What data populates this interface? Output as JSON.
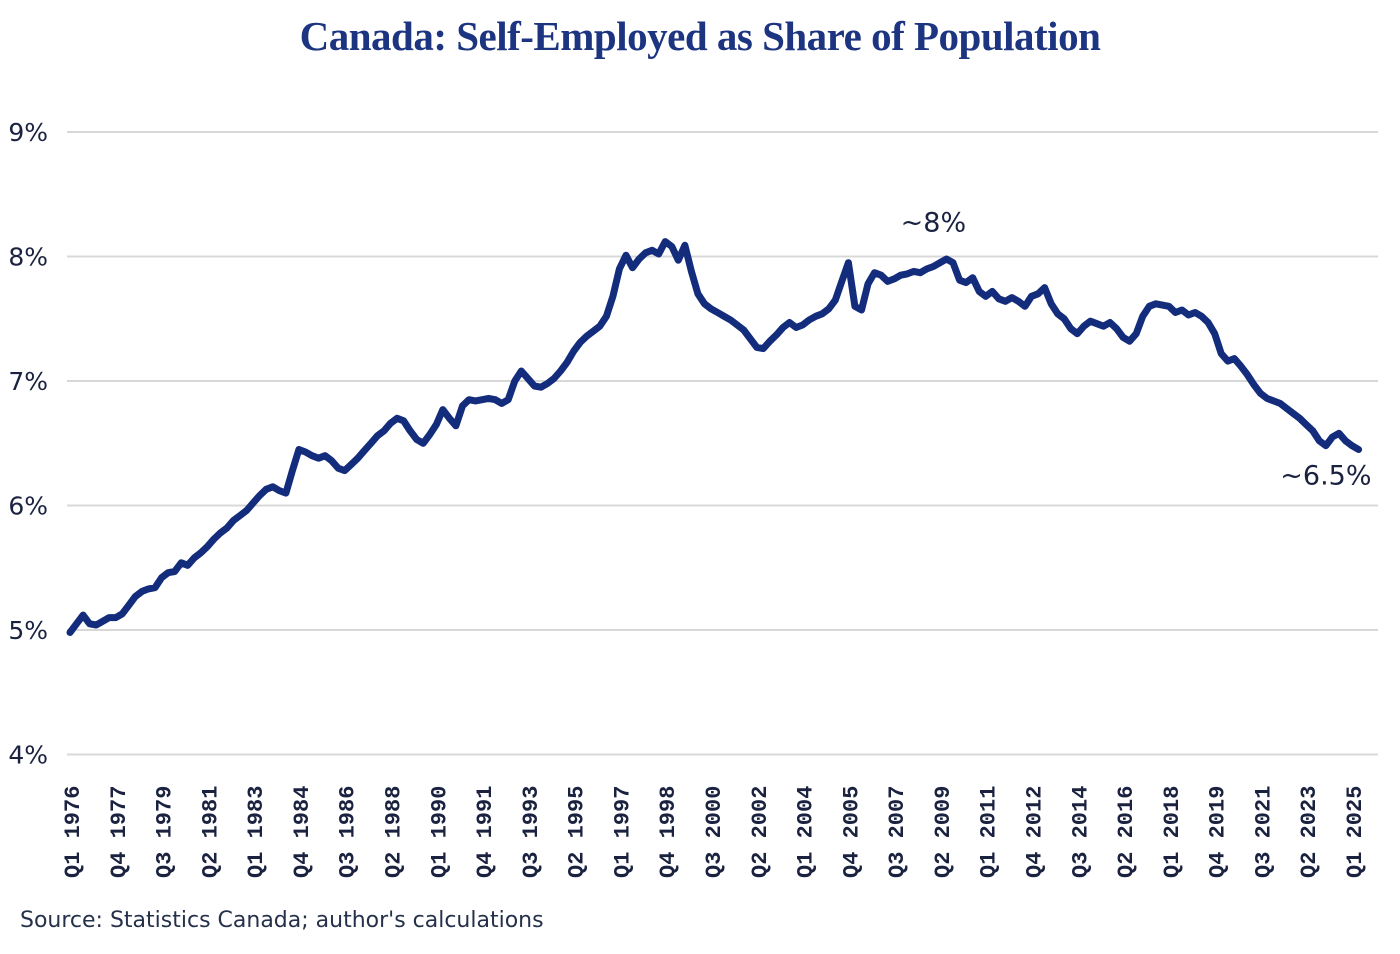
{
  "page": {
    "title": "Canada: Self-Employed as Share of Population",
    "source": "Source: Statistics Canada; author's calculations"
  },
  "colors": {
    "title": "#1d3581",
    "line": "#142c7c",
    "axis_text": "#1a2240",
    "gridline": "#d8d8d8",
    "source_text": "#25304a"
  },
  "chart_data": {
    "type": "line",
    "title": "Canada: Self-Employed as Share of Population",
    "unit": "%",
    "frequency": "quarterly",
    "start_quarter": "Q1 1976",
    "end_quarter": "Q2 2025",
    "xlabel": "",
    "ylabel": "",
    "ylim": [
      4,
      9
    ],
    "grid": "horizontal",
    "legend": "none",
    "y_ticks": [
      9,
      8,
      7,
      6,
      5,
      4
    ],
    "y_tick_labels": [
      "9%",
      "8%",
      "7%",
      "6%",
      "5%",
      "4%"
    ],
    "x_tick_labels": [
      "Q1 1976",
      "Q4 1977",
      "Q3 1979",
      "Q2 1981",
      "Q1 1983",
      "Q4 1984",
      "Q3 1986",
      "Q2 1988",
      "Q1 1990",
      "Q4 1991",
      "Q3 1993",
      "Q2 1995",
      "Q1 1997",
      "Q4 1998",
      "Q3 2000",
      "Q2 2002",
      "Q1 2004",
      "Q4 2005",
      "Q3 2007",
      "Q2 2009",
      "Q1 2011",
      "Q4 2012",
      "Q3 2014",
      "Q2 2016",
      "Q1 2018",
      "Q4 2019",
      "Q3 2021",
      "Q2 2023",
      "Q1 2025"
    ],
    "annotations": [
      {
        "label": "~8%",
        "anchor_quarter": "Q1 2009",
        "anchor_value": 8.2
      },
      {
        "label": "~6.5%",
        "anchor_quarter": "Q1 2024",
        "anchor_value": 6.17
      }
    ],
    "values": [
      4.98,
      5.05,
      5.12,
      5.05,
      5.04,
      5.07,
      5.1,
      5.1,
      5.13,
      5.2,
      5.27,
      5.31,
      5.33,
      5.34,
      5.42,
      5.46,
      5.47,
      5.54,
      5.52,
      5.58,
      5.62,
      5.67,
      5.73,
      5.78,
      5.82,
      5.88,
      5.92,
      5.96,
      6.02,
      6.08,
      6.13,
      6.15,
      6.12,
      6.1,
      6.28,
      6.45,
      6.43,
      6.4,
      6.38,
      6.4,
      6.36,
      6.3,
      6.28,
      6.33,
      6.38,
      6.44,
      6.5,
      6.56,
      6.6,
      6.66,
      6.7,
      6.68,
      6.6,
      6.53,
      6.5,
      6.57,
      6.65,
      6.77,
      6.7,
      6.64,
      6.8,
      6.85,
      6.84,
      6.85,
      6.86,
      6.85,
      6.82,
      6.85,
      7.0,
      7.08,
      7.02,
      6.96,
      6.95,
      6.98,
      7.02,
      7.08,
      7.15,
      7.24,
      7.31,
      7.36,
      7.4,
      7.44,
      7.52,
      7.68,
      7.9,
      8.01,
      7.91,
      7.98,
      8.03,
      8.05,
      8.02,
      8.12,
      8.08,
      7.97,
      8.09,
      7.88,
      7.7,
      7.62,
      7.58,
      7.55,
      7.52,
      7.49,
      7.45,
      7.41,
      7.34,
      7.27,
      7.26,
      7.32,
      7.37,
      7.43,
      7.47,
      7.43,
      7.45,
      7.49,
      7.52,
      7.54,
      7.58,
      7.65,
      7.8,
      7.95,
      7.6,
      7.57,
      7.78,
      7.87,
      7.85,
      7.8,
      7.82,
      7.85,
      7.86,
      7.88,
      7.87,
      7.9,
      7.92,
      7.95,
      7.98,
      7.95,
      7.81,
      7.79,
      7.83,
      7.72,
      7.68,
      7.72,
      7.66,
      7.64,
      7.67,
      7.64,
      7.6,
      7.68,
      7.7,
      7.75,
      7.62,
      7.54,
      7.5,
      7.42,
      7.38,
      7.44,
      7.48,
      7.46,
      7.44,
      7.47,
      7.42,
      7.35,
      7.32,
      7.38,
      7.52,
      7.6,
      7.62,
      7.61,
      7.6,
      7.55,
      7.57,
      7.53,
      7.55,
      7.52,
      7.47,
      7.38,
      7.22,
      7.16,
      7.18,
      7.12,
      7.05,
      6.97,
      6.9,
      6.86,
      6.84,
      6.82,
      6.78,
      6.74,
      6.7,
      6.65,
      6.6,
      6.52,
      6.48,
      6.55,
      6.58,
      6.52,
      6.48,
      6.45
    ]
  }
}
